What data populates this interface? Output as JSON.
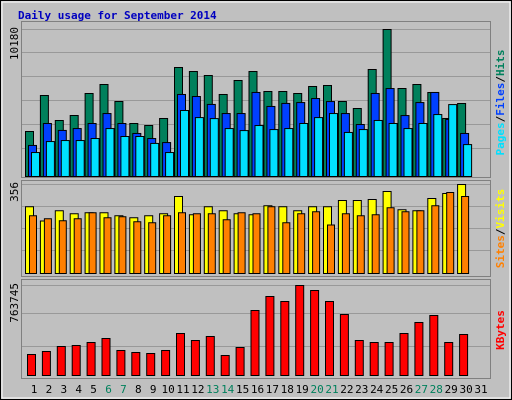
{
  "chart_data": [
    {
      "type": "bar",
      "title": "Daily usage for September 2014",
      "separator": "/",
      "ylim": [
        0,
        10180
      ],
      "yticks": [
        10180
      ],
      "series": [
        {
          "name": "Hits",
          "color": "#00805c",
          "values": [
            3116,
            5609,
            3878,
            4224,
            5748,
            6371,
            5194,
            3670,
            3532,
            4017,
            7548,
            7271,
            6994,
            5679,
            6648,
            7271,
            5886,
            5886,
            5748,
            6233,
            6302,
            5194,
            4709,
            7410,
            10180,
            6094,
            6371,
            5817,
            4017,
            5055,
            null
          ]
        },
        {
          "name": "Files",
          "color": "#0040ff",
          "values": [
            2150,
            3670,
            3190,
            3320,
            3670,
            4360,
            3670,
            2980,
            2630,
            2350,
            5680,
            5540,
            4990,
            4360,
            4360,
            5820,
            4850,
            5060,
            5120,
            5400,
            5190,
            4360,
            3600,
            5750,
            6090,
            4220,
            5120,
            5820,
            3950,
            2980,
            null
          ]
        },
        {
          "name": "Pages",
          "color": "#00e0ff",
          "values": [
            1660,
            2420,
            2490,
            2490,
            2630,
            3320,
            2770,
            2770,
            2290,
            1660,
            4570,
            4080,
            4010,
            3320,
            3180,
            3530,
            3250,
            3320,
            3670,
            4080,
            4360,
            3050,
            3250,
            3880,
            3670,
            3320,
            3670,
            4290,
            4980,
            2210,
            null
          ]
        }
      ]
    },
    {
      "type": "bar",
      "ylim": [
        0,
        356
      ],
      "yticks": [
        356
      ],
      "series": [
        {
          "name": "Visits",
          "color": "#ffff00",
          "values": [
            267,
            210,
            251,
            239,
            243,
            243,
            231,
            223,
            231,
            239,
            308,
            235,
            267,
            251,
            239,
            235,
            271,
            267,
            251,
            267,
            267,
            292,
            292,
            296,
            328,
            255,
            251,
            300,
            320,
            356,
            null
          ]
        },
        {
          "name": "Sites",
          "color": "#ff8000",
          "values": [
            231,
            219,
            211,
            219,
            243,
            223,
            227,
            207,
            203,
            231,
            243,
            239,
            239,
            215,
            243,
            239,
            267,
            203,
            239,
            247,
            194,
            239,
            231,
            235,
            263,
            247,
            251,
            271,
            324,
            308,
            null
          ]
        }
      ]
    },
    {
      "type": "bar",
      "ylim": [
        0,
        763745
      ],
      "yticks": [
        763745
      ],
      "categories": [
        "1",
        "2",
        "3",
        "4",
        "5",
        "6",
        "7",
        "8",
        "9",
        "10",
        "11",
        "12",
        "13",
        "14",
        "15",
        "16",
        "17",
        "18",
        "19",
        "20",
        "21",
        "22",
        "23",
        "24",
        "25",
        "26",
        "27",
        "28",
        "29",
        "30",
        "31"
      ],
      "weekend_indices": [
        5,
        6,
        12,
        13,
        19,
        20,
        26,
        27
      ],
      "weekend_color": "#00805c",
      "series": [
        {
          "name": "KBytes",
          "color": "#ff0000",
          "values": [
            178200,
            203700,
            246100,
            254600,
            280000,
            314000,
            212200,
            195200,
            186700,
            212200,
            356400,
            297000,
            331000,
            169700,
            237600,
            551600,
            670400,
            628000,
            763745,
            721300,
            628000,
            517600,
            297000,
            280000,
            280000,
            356400,
            449800,
            509200,
            280000,
            347900,
            null
          ]
        }
      ]
    }
  ]
}
